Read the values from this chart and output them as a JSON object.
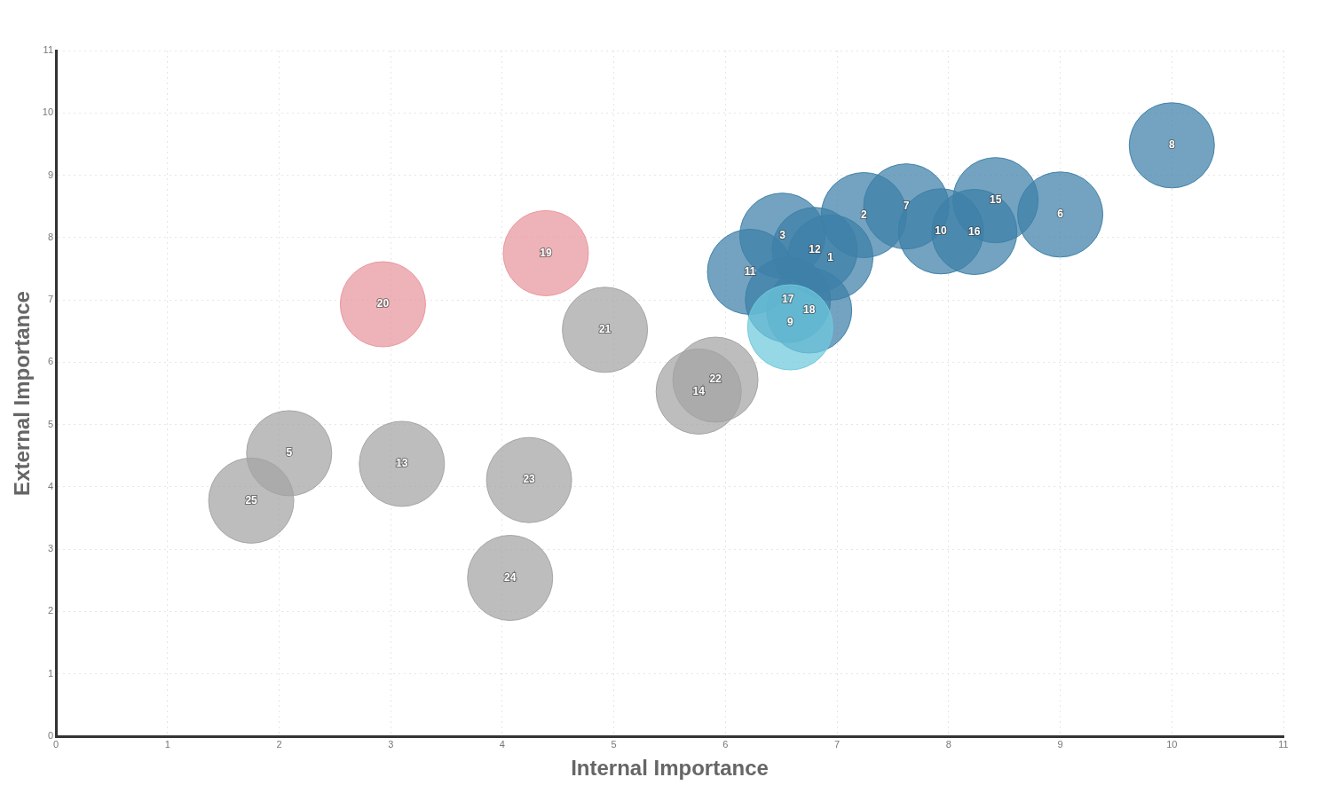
{
  "chart_data": {
    "type": "bubble",
    "xlabel": "Internal Importance",
    "ylabel": "External Importance",
    "xlim": [
      0,
      11
    ],
    "ylim": [
      0,
      11
    ],
    "xticks": [
      0,
      1,
      2,
      3,
      4,
      5,
      6,
      7,
      8,
      9,
      10,
      11
    ],
    "yticks": [
      0,
      1,
      2,
      3,
      4,
      5,
      6,
      7,
      8,
      9,
      10,
      11
    ],
    "grid": true,
    "series": [
      {
        "color": "#a3a3a3",
        "x": [
          4.92,
          5.91,
          5.76,
          2.09,
          3.1,
          4.24,
          1.75,
          4.07
        ],
        "values": [
          6.52,
          5.72,
          5.53,
          4.54,
          4.37,
          4.11,
          3.78,
          2.54
        ],
        "sizes": [
          1,
          1,
          1,
          1,
          1,
          1,
          1,
          1
        ]
      },
      {
        "color": "#e8959c",
        "x": [
          2.93,
          4.39
        ],
        "values": [
          6.93,
          7.75
        ],
        "sizes": [
          1,
          1
        ]
      },
      {
        "color": "#6ec9dd",
        "x": [
          6.58
        ],
        "values": [
          6.56
        ],
        "sizes": [
          1
        ]
      },
      {
        "color": "#3d7fa8",
        "x": [
          10,
          9,
          8.42,
          8.23,
          7.93,
          7.62,
          7.24,
          6.94,
          6.8,
          6.51,
          6.22,
          6.56,
          6.75
        ],
        "values": [
          9.48,
          8.37,
          8.6,
          8.09,
          8.1,
          8.5,
          8.36,
          7.68,
          7.8,
          8.03,
          7.45,
          7.0,
          6.83
        ],
        "sizes": [
          1,
          1,
          1,
          1,
          1,
          1,
          1,
          1,
          1,
          1,
          1,
          1,
          1
        ]
      }
    ],
    "annotations": [
      {
        "text": "21",
        "x": 4.92,
        "y": 6.52
      },
      {
        "text": "22",
        "x": 5.91,
        "y": 5.72
      },
      {
        "text": "14",
        "x": 5.76,
        "y": 5.53
      },
      {
        "text": "5",
        "x": 2.09,
        "y": 4.54
      },
      {
        "text": "13",
        "x": 3.1,
        "y": 4.37
      },
      {
        "text": "23",
        "x": 4.24,
        "y": 4.11
      },
      {
        "text": "25",
        "x": 1.75,
        "y": 3.78
      },
      {
        "text": "24",
        "x": 4.07,
        "y": 2.54
      },
      {
        "text": "20",
        "x": 2.93,
        "y": 6.93
      },
      {
        "text": "19",
        "x": 4.39,
        "y": 7.75
      },
      {
        "text": "9",
        "x": 6.58,
        "y": 6.63
      },
      {
        "text": "8",
        "x": 10,
        "y": 9.48
      },
      {
        "text": "6",
        "x": 9,
        "y": 8.37
      },
      {
        "text": "15",
        "x": 8.42,
        "y": 8.6
      },
      {
        "text": "16",
        "x": 8.23,
        "y": 8.09
      },
      {
        "text": "10",
        "x": 7.93,
        "y": 8.1
      },
      {
        "text": "7",
        "x": 7.62,
        "y": 8.5
      },
      {
        "text": "2",
        "x": 7.24,
        "y": 8.36
      },
      {
        "text": "1",
        "x": 6.94,
        "y": 7.68
      },
      {
        "text": "12",
        "x": 6.8,
        "y": 7.8
      },
      {
        "text": "3",
        "x": 6.51,
        "y": 8.03
      },
      {
        "text": "11",
        "x": 6.22,
        "y": 7.45
      },
      {
        "text": "17",
        "x": 6.56,
        "y": 7.0
      },
      {
        "text": "18",
        "x": 6.75,
        "y": 6.83
      }
    ]
  }
}
